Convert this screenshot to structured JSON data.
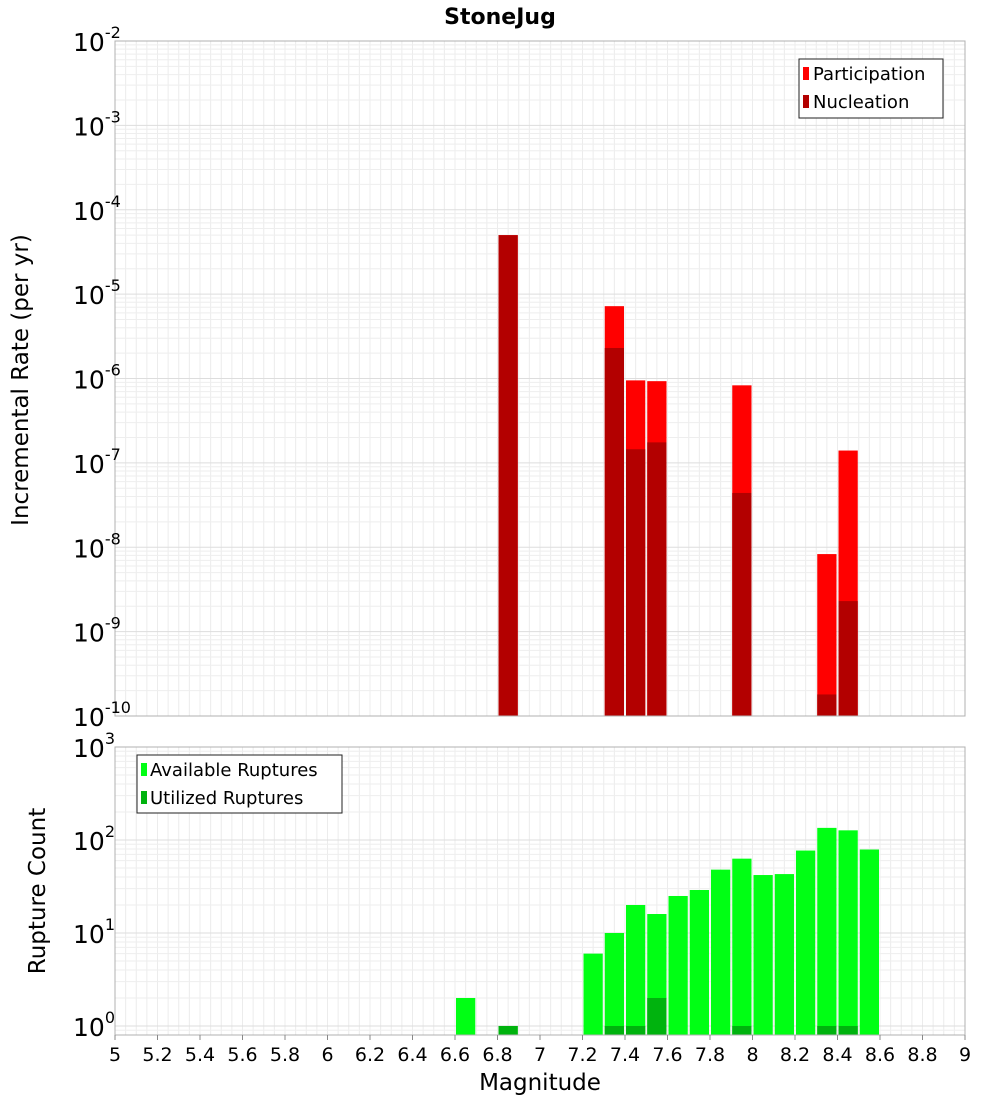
{
  "chart_data": [
    {
      "type": "bar",
      "title": "StoneJug",
      "xlabel": "",
      "ylabel": "Incremental Rate (per yr)",
      "xlim": [
        5,
        9
      ],
      "ylim": [
        1e-10,
        0.01
      ],
      "yscale": "log",
      "y_tick_exponents": [
        "-2",
        "-3",
        "-4",
        "-5",
        "-6",
        "-7",
        "-8",
        "-9",
        "-10"
      ],
      "grid": true,
      "legend_position": "top-right",
      "series": [
        {
          "name": "Participation",
          "color": "#ff0000",
          "x": [
            6.85,
            7.35,
            7.45,
            7.55,
            7.95,
            8.35,
            8.45
          ],
          "values": [
            5e-05,
            7.2e-06,
            9.5e-07,
            9.3e-07,
            8.3e-07,
            8.3e-09,
            1.4e-07
          ]
        },
        {
          "name": "Nucleation",
          "color": "#b30000",
          "x": [
            6.85,
            7.35,
            7.45,
            7.55,
            7.95,
            8.35,
            8.45
          ],
          "values": [
            5e-05,
            2.3e-06,
            1.45e-07,
            1.75e-07,
            4.4e-08,
            1.8e-10,
            2.3e-09
          ]
        }
      ]
    },
    {
      "type": "bar",
      "title": "",
      "xlabel": "Magnitude",
      "ylabel": "Rupture Count",
      "xlim": [
        5,
        9
      ],
      "ylim": [
        0.8,
        1000
      ],
      "yscale": "log",
      "y_tick_exponents": [
        "3",
        "2",
        "1",
        "0"
      ],
      "x_ticks": [
        "5",
        "5.2",
        "5.4",
        "5.6",
        "5.8",
        "6",
        "6.2",
        "6.4",
        "6.6",
        "6.8",
        "7",
        "7.2",
        "7.4",
        "7.6",
        "7.8",
        "8",
        "8.2",
        "8.4",
        "8.6",
        "8.8",
        "9"
      ],
      "grid": true,
      "legend_position": "top-left",
      "series": [
        {
          "name": "Available Ruptures",
          "color": "#00ff14",
          "x": [
            6.65,
            6.85,
            7.25,
            7.35,
            7.45,
            7.55,
            7.65,
            7.75,
            7.85,
            7.95,
            8.05,
            8.15,
            8.25,
            8.35,
            8.45,
            8.55
          ],
          "values": [
            2,
            1,
            6,
            10,
            20,
            16,
            25,
            29,
            48,
            63,
            42,
            43,
            77,
            135,
            127,
            79
          ]
        },
        {
          "name": "Utilized Ruptures",
          "color": "#00b30e",
          "x": [
            6.85,
            7.35,
            7.45,
            7.55,
            7.95,
            8.35,
            8.45
          ],
          "values": [
            1,
            1,
            1,
            2,
            1,
            1,
            1
          ]
        }
      ]
    }
  ]
}
